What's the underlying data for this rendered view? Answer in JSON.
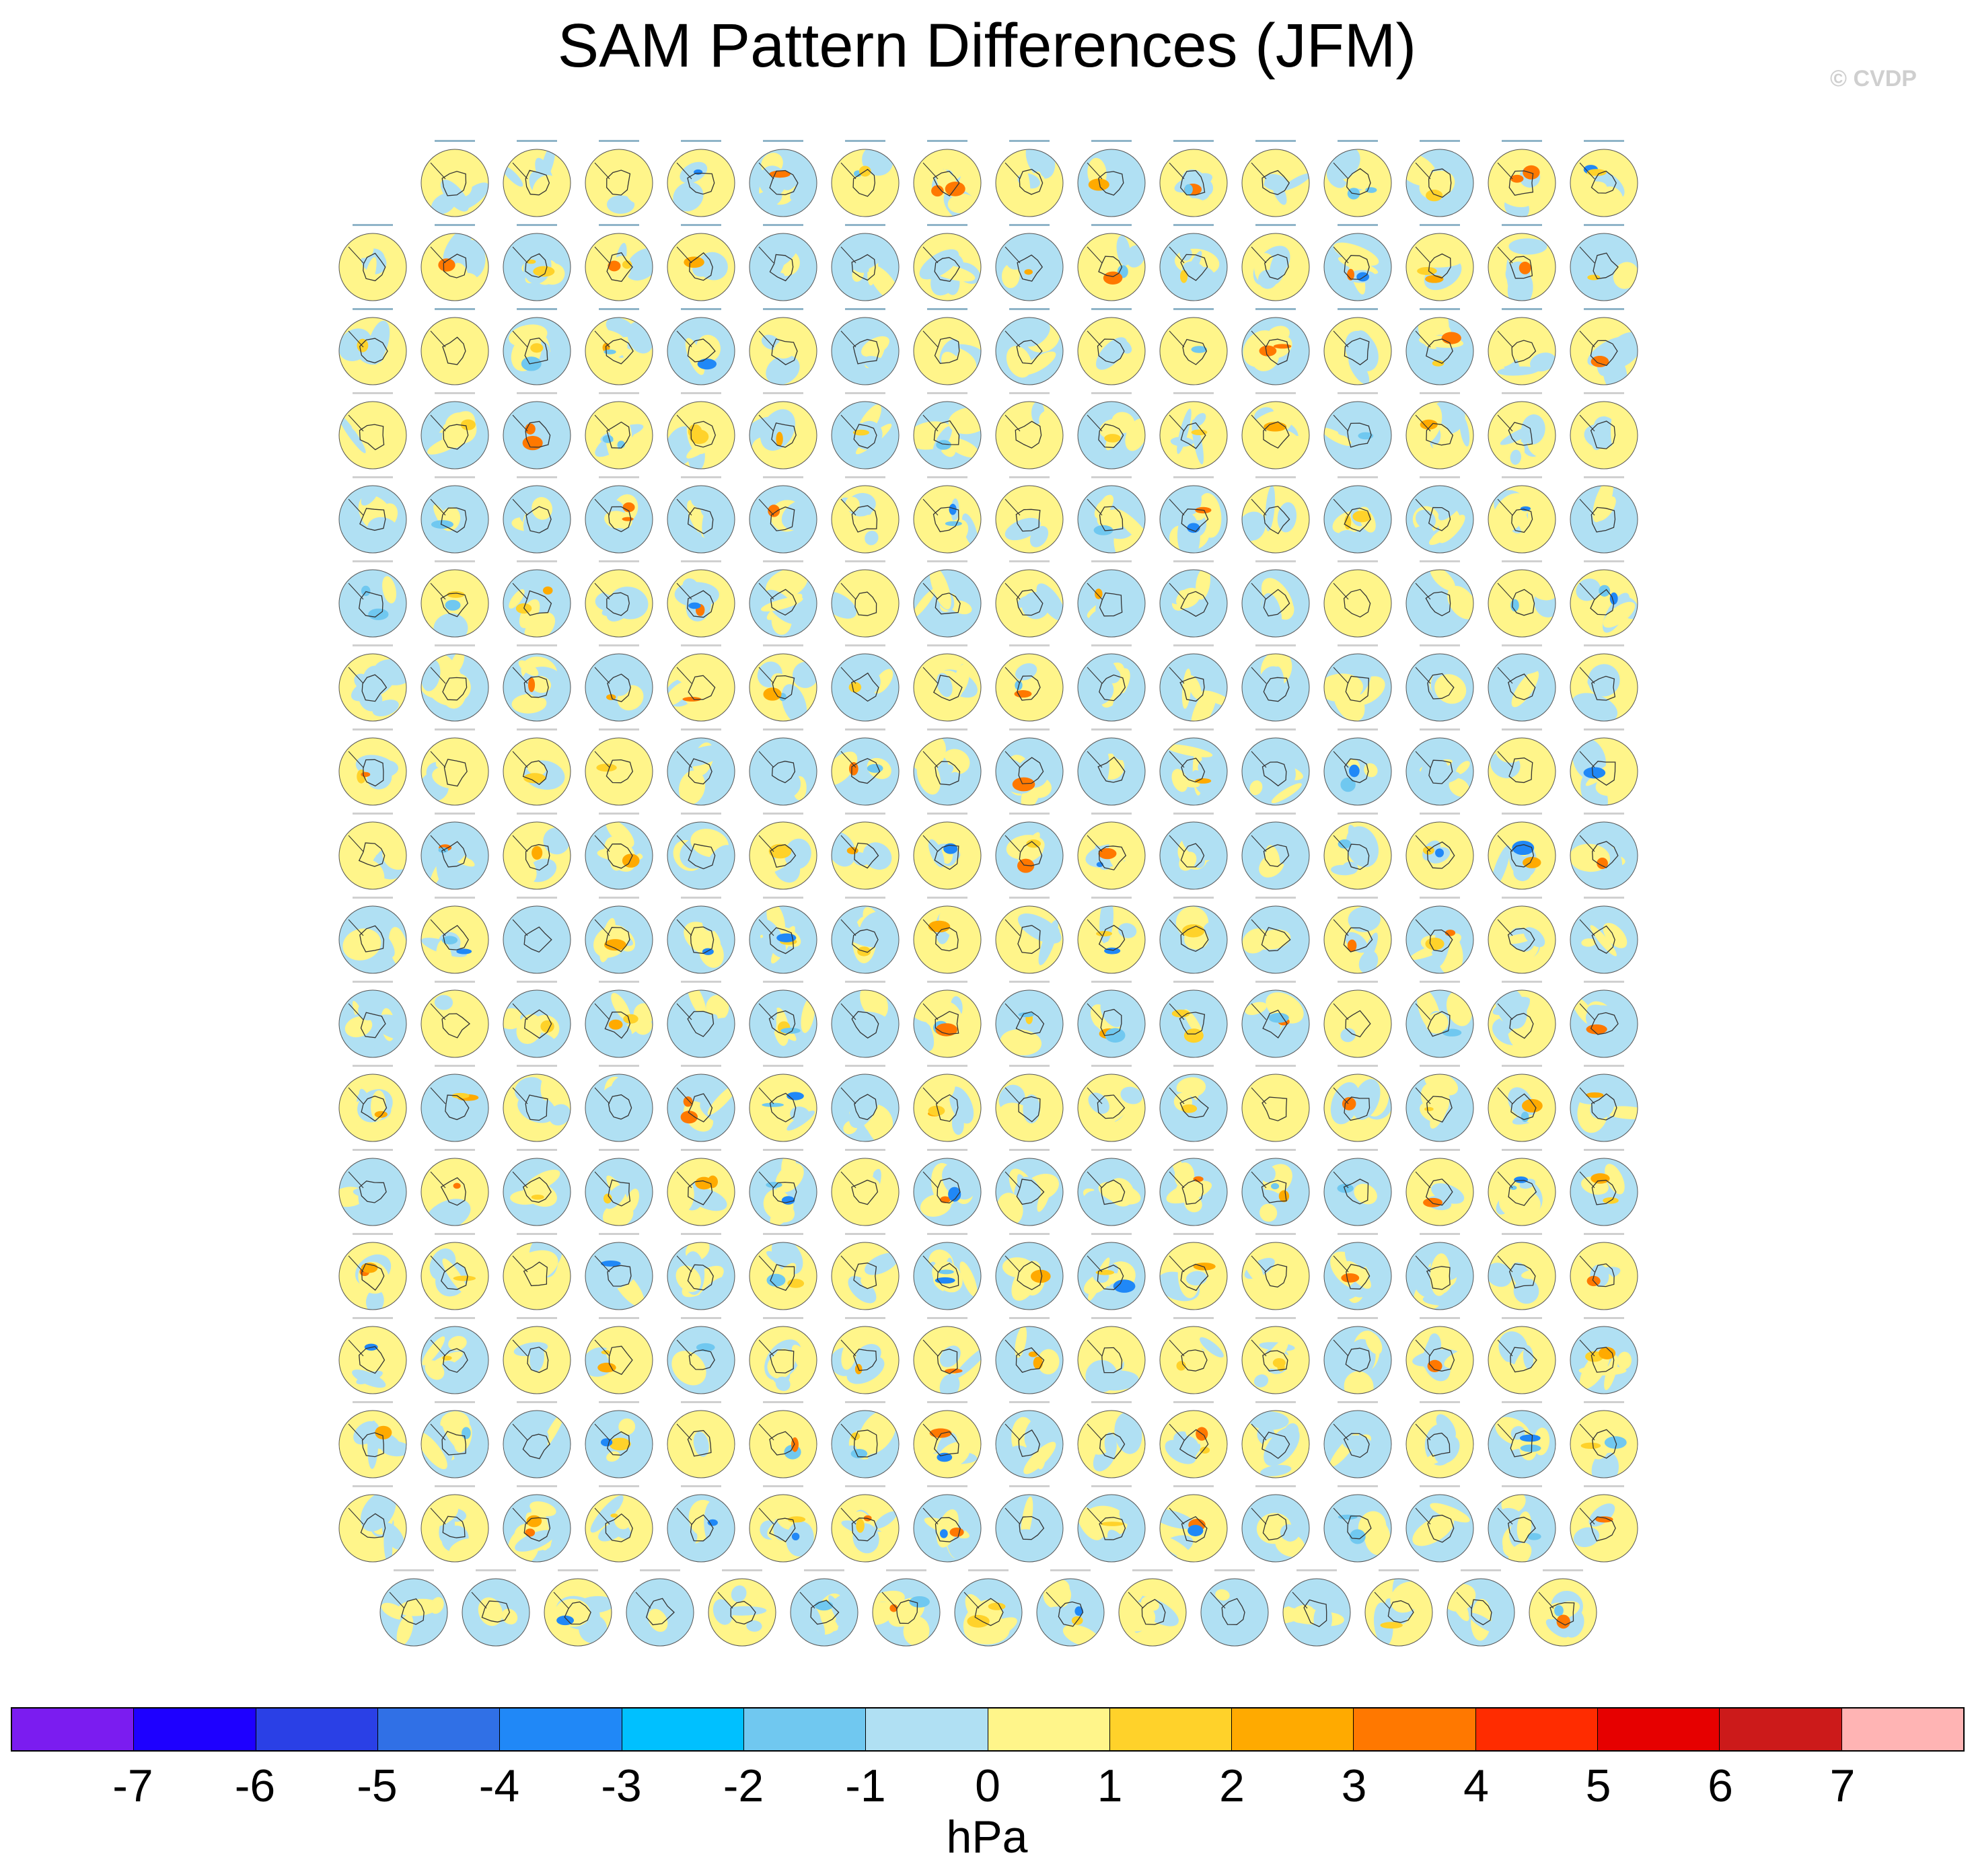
{
  "title": "SAM Pattern Differences (JFM)",
  "credit": "© CVDP",
  "units": "hPa",
  "chart_data": {
    "type": "heatmap",
    "description_kind": "small multiples of polar-projection pressure anomaly maps",
    "title": "SAM Pattern Differences (JFM)",
    "panel_rows": [
      15,
      16,
      16,
      16,
      16,
      16,
      16,
      16,
      16,
      16,
      16,
      16,
      16,
      16,
      16,
      16,
      16,
      15
    ],
    "colorbar": {
      "label": "hPa",
      "ticks": [
        -7,
        -6,
        -5,
        -4,
        -3,
        -2,
        -1,
        0,
        1,
        2,
        3,
        4,
        5,
        6,
        7
      ],
      "colors": [
        "#7b1cf0",
        "#1e00ff",
        "#2a40e6",
        "#3070e6",
        "#2088f7",
        "#00c0ff",
        "#70c8f0",
        "#b0e0f3",
        "#fff58a",
        "#ffd22a",
        "#ffaa00",
        "#ff7800",
        "#ff2c00",
        "#e60000",
        "#cc1a1a",
        "#ffb4b4"
      ]
    }
  }
}
